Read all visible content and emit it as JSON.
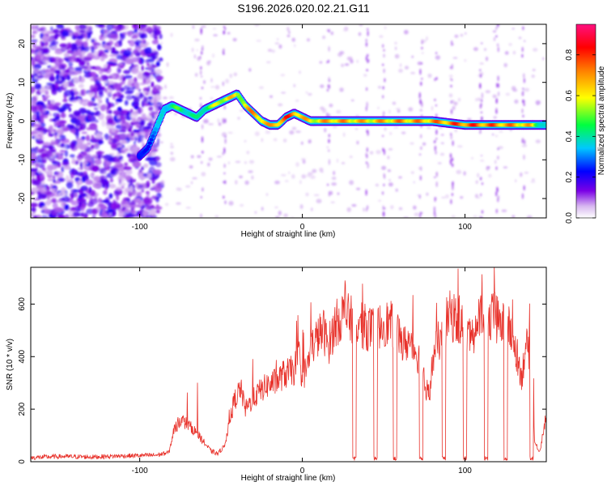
{
  "title": "S196.2026.020.02.21.G11",
  "chart_data": [
    {
      "type": "heatmap",
      "xlabel": "Height of straight line (km)",
      "ylabel": "Frequency (Hz)",
      "xlim": [
        -167,
        150
      ],
      "ylim": [
        -25,
        25
      ],
      "x_ticks": [
        -100,
        0,
        100
      ],
      "x_tick_labels": [
        "-100",
        "0",
        "100"
      ],
      "y_ticks": [
        -20,
        -10,
        0,
        10,
        20
      ],
      "y_tick_labels": [
        "-20",
        "-10",
        "0",
        "10",
        "20"
      ],
      "colorbar": {
        "label": "Normalized spectral amplitude",
        "range": [
          0,
          0.95
        ],
        "ticks": [
          0.0,
          0.2,
          0.4,
          0.6,
          0.8
        ],
        "tick_labels": [
          "0.0",
          "0.2",
          "0.4",
          "0.6",
          "0.8"
        ]
      },
      "ridge": {
        "x": [
          -100,
          -95,
          -90,
          -85,
          -80,
          -75,
          -70,
          -65,
          -60,
          -55,
          -50,
          -45,
          -40,
          -35,
          -30,
          -25,
          -20,
          -15,
          -10,
          -5,
          0,
          5,
          10,
          20,
          40,
          60,
          80,
          100,
          120,
          140,
          150
        ],
        "y": [
          -9,
          -7,
          -2,
          3,
          4,
          3,
          2,
          1,
          3,
          4,
          5,
          6,
          7,
          4,
          2,
          0,
          -1,
          -1,
          1,
          2,
          1,
          0,
          0,
          0,
          0,
          0,
          0,
          -1,
          -1,
          -1,
          -1
        ],
        "amplitude": [
          0.25,
          0.3,
          0.35,
          0.45,
          0.5,
          0.55,
          0.5,
          0.45,
          0.55,
          0.6,
          0.7,
          0.75,
          0.65,
          0.75,
          0.8,
          0.8,
          0.75,
          0.85,
          0.9,
          0.85,
          0.8,
          0.7,
          0.75,
          0.8,
          0.75,
          0.8,
          0.8,
          0.9,
          0.85,
          0.75,
          0.4
        ]
      }
    },
    {
      "type": "line",
      "xlabel": "Height of straight line (km)",
      "ylabel": "SNR (10 * v/v)",
      "xlim": [
        -167,
        150
      ],
      "ylim": [
        0,
        740
      ],
      "x_ticks": [
        -100,
        0,
        100
      ],
      "x_tick_labels": [
        "-100",
        "0",
        "100"
      ],
      "y_ticks": [
        0,
        200,
        400,
        600
      ],
      "y_tick_labels": [
        "0",
        "200",
        "400",
        "600"
      ],
      "color": "#e8322b",
      "series": [
        {
          "x": [
            -167,
            -150,
            -130,
            -110,
            -90,
            -82,
            -79,
            -75,
            -70,
            -65,
            -60,
            -56,
            -52,
            -48,
            -45,
            -42,
            -38,
            -35,
            -30,
            -26,
            -22,
            -18,
            -15,
            -12,
            -8,
            -5,
            -2,
            0,
            3,
            6,
            10,
            13,
            16,
            20,
            25,
            30,
            35,
            40,
            45,
            50,
            55,
            60,
            62,
            65,
            70,
            72,
            75,
            78,
            80,
            83,
            86,
            88,
            90,
            94,
            98,
            102,
            106,
            110,
            114,
            118,
            122,
            126,
            130,
            133,
            135,
            137,
            140,
            143,
            146,
            148,
            150
          ],
          "y": [
            15,
            20,
            18,
            22,
            25,
            35,
            120,
            160,
            140,
            110,
            70,
            40,
            30,
            60,
            140,
            230,
            280,
            200,
            240,
            270,
            290,
            300,
            310,
            330,
            340,
            350,
            400,
            320,
            360,
            440,
            480,
            500,
            440,
            520,
            560,
            540,
            520,
            510,
            500,
            530,
            520,
            480,
            440,
            460,
            420,
            390,
            300,
            250,
            380,
            450,
            480,
            520,
            560,
            540,
            530,
            480,
            500,
            560,
            520,
            560,
            520,
            520,
            460,
            380,
            320,
            440,
            420,
            70,
            40,
            110,
            180
          ],
          "gaps": [
            [
              31,
              33
            ],
            [
              44,
              46
            ],
            [
              56,
              58
            ],
            [
              72,
              74
            ],
            [
              86,
              88
            ],
            [
              99,
              101
            ],
            [
              112,
              114
            ],
            [
              124,
              126
            ],
            [
              140,
              142
            ]
          ]
        }
      ]
    }
  ]
}
